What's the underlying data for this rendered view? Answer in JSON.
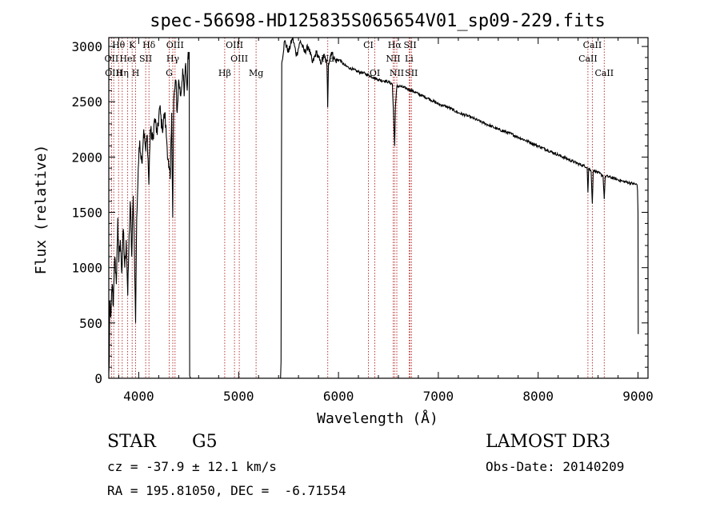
{
  "chart_data": {
    "type": "line",
    "title": "spec-56698-HD125835S065654V01_sp09-229.fits",
    "xlabel": "Wavelength (Å)",
    "ylabel": "Flux (relative)",
    "xlim": [
      3700,
      9100
    ],
    "ylim": [
      0,
      3080
    ],
    "xticks": [
      4000,
      5000,
      6000,
      7000,
      8000,
      9000
    ],
    "yticks": [
      0,
      500,
      1000,
      1500,
      2000,
      2500,
      3000
    ],
    "xtick_labels": [
      "4000",
      "5000",
      "6000",
      "7000",
      "8000",
      "9000"
    ],
    "ytick_labels": [
      "0",
      "500",
      "1000",
      "1500",
      "2000",
      "2500",
      "3000"
    ],
    "series": [
      {
        "name": "flux",
        "anchors": [
          [
            3700,
            50
          ],
          [
            3705,
            150
          ],
          [
            3710,
            700
          ],
          [
            3720,
            550
          ],
          [
            3735,
            850
          ],
          [
            3745,
            650
          ],
          [
            3760,
            1100
          ],
          [
            3775,
            850
          ],
          [
            3790,
            1450
          ],
          [
            3800,
            1050
          ],
          [
            3815,
            1250
          ],
          [
            3830,
            950
          ],
          [
            3845,
            1350
          ],
          [
            3860,
            1000
          ],
          [
            3875,
            1250
          ],
          [
            3890,
            750
          ],
          [
            3900,
            1150
          ],
          [
            3915,
            1600
          ],
          [
            3930,
            1100
          ],
          [
            3945,
            1650
          ],
          [
            3955,
            1250
          ],
          [
            3968,
            500
          ],
          [
            3980,
            1450
          ],
          [
            3995,
            1900
          ],
          [
            4010,
            2150
          ],
          [
            4030,
            1950
          ],
          [
            4050,
            2250
          ],
          [
            4070,
            2050
          ],
          [
            4085,
            2200
          ],
          [
            4101,
            1750
          ],
          [
            4115,
            2250
          ],
          [
            4140,
            2150
          ],
          [
            4160,
            2350
          ],
          [
            4185,
            2200
          ],
          [
            4210,
            2450
          ],
          [
            4235,
            2250
          ],
          [
            4260,
            2400
          ],
          [
            4280,
            2150
          ],
          [
            4300,
            1900
          ],
          [
            4315,
            1800
          ],
          [
            4330,
            2400
          ],
          [
            4340,
            1450
          ],
          [
            4350,
            2500
          ],
          [
            4370,
            2700
          ],
          [
            4385,
            2400
          ],
          [
            4400,
            2700
          ],
          [
            4420,
            2550
          ],
          [
            4440,
            2800
          ],
          [
            4455,
            2550
          ],
          [
            4470,
            2850
          ],
          [
            4485,
            2600
          ],
          [
            4495,
            2950
          ],
          [
            4505,
            2950
          ],
          [
            4510,
            20
          ],
          [
            4520,
            0
          ],
          [
            5420,
            0
          ],
          [
            5425,
            150
          ],
          [
            5432,
            2850
          ],
          [
            5460,
            3050
          ],
          [
            5500,
            2950
          ],
          [
            5540,
            3080
          ],
          [
            5580,
            2920
          ],
          [
            5620,
            3050
          ],
          [
            5660,
            2950
          ],
          [
            5700,
            3000
          ],
          [
            5740,
            2850
          ],
          [
            5780,
            2950
          ],
          [
            5820,
            2850
          ],
          [
            5860,
            2920
          ],
          [
            5885,
            2820
          ],
          [
            5892,
            2450
          ],
          [
            5900,
            2850
          ],
          [
            5930,
            2950
          ],
          [
            5970,
            2870
          ],
          [
            6010,
            2880
          ],
          [
            6060,
            2830
          ],
          [
            6100,
            2810
          ],
          [
            6150,
            2790
          ],
          [
            6200,
            2770
          ],
          [
            6250,
            2760
          ],
          [
            6300,
            2740
          ],
          [
            6350,
            2720
          ],
          [
            6400,
            2700
          ],
          [
            6450,
            2690
          ],
          [
            6500,
            2680
          ],
          [
            6540,
            2660
          ],
          [
            6555,
            2300
          ],
          [
            6563,
            2100
          ],
          [
            6570,
            2450
          ],
          [
            6585,
            2640
          ],
          [
            6620,
            2640
          ],
          [
            6680,
            2620
          ],
          [
            6740,
            2600
          ],
          [
            6800,
            2570
          ],
          [
            6900,
            2530
          ],
          [
            7000,
            2480
          ],
          [
            7100,
            2450
          ],
          [
            7200,
            2400
          ],
          [
            7300,
            2370
          ],
          [
            7400,
            2330
          ],
          [
            7500,
            2290
          ],
          [
            7600,
            2250
          ],
          [
            7700,
            2220
          ],
          [
            7800,
            2180
          ],
          [
            7900,
            2140
          ],
          [
            8000,
            2100
          ],
          [
            8100,
            2060
          ],
          [
            8200,
            2020
          ],
          [
            8300,
            1980
          ],
          [
            8400,
            1940
          ],
          [
            8490,
            1910
          ],
          [
            8498,
            1680
          ],
          [
            8506,
            1900
          ],
          [
            8530,
            1870
          ],
          [
            8542,
            1580
          ],
          [
            8552,
            1880
          ],
          [
            8600,
            1860
          ],
          [
            8650,
            1830
          ],
          [
            8662,
            1620
          ],
          [
            8672,
            1830
          ],
          [
            8750,
            1810
          ],
          [
            8850,
            1780
          ],
          [
            8950,
            1760
          ],
          [
            8990,
            1750
          ],
          [
            8995,
            1700
          ],
          [
            9000,
            1500
          ],
          [
            9002,
            400
          ]
        ]
      }
    ],
    "line_markers": [
      {
        "label": "Hθ",
        "wave": 3798
      },
      {
        "label": "K",
        "wave": 3934
      },
      {
        "label": "Hδ",
        "wave": 4102
      },
      {
        "label": "OIII",
        "wave": 4363
      },
      {
        "label": "OIII",
        "wave": 4959
      },
      {
        "label": "CI",
        "wave": 6300
      },
      {
        "label": "Hα",
        "wave": 6563
      },
      {
        "label": "SII",
        "wave": 6717
      },
      {
        "label": "CaII",
        "wave": 8542
      },
      {
        "label": "OII",
        "wave": 3727
      },
      {
        "label": "HeI",
        "wave": 3889
      },
      {
        "label": "SII",
        "wave": 4069
      },
      {
        "label": "Hγ",
        "wave": 4341
      },
      {
        "label": "OIII",
        "wave": 5007
      },
      {
        "label": "Na",
        "wave": 5893
      },
      {
        "label": "NII",
        "wave": 6548
      },
      {
        "label": "Li",
        "wave": 6708
      },
      {
        "label": "CaII",
        "wave": 8498
      },
      {
        "label": "OIII",
        "wave": 3750
      },
      {
        "label": "Hη",
        "wave": 3835
      },
      {
        "label": "H",
        "wave": 3968
      },
      {
        "label": "G",
        "wave": 4305
      },
      {
        "label": "Hβ",
        "wave": 4861
      },
      {
        "label": "Mg",
        "wave": 5175
      },
      {
        "label": "OI",
        "wave": 6364
      },
      {
        "label": "NII",
        "wave": 6584
      },
      {
        "label": "SII",
        "wave": 6731
      },
      {
        "label": "CaII",
        "wave": 8662
      }
    ]
  },
  "info": {
    "class_label": "STAR",
    "subclass": "G5",
    "survey": "LAMOST DR3",
    "cz": "cz = -37.9 ± 12.1 km/s",
    "obs_date": "Obs-Date: 20140209",
    "coords": "RA = 195.81050, DEC =  -6.71554"
  },
  "colors": {
    "line": "#000000",
    "marker": "#b22222",
    "axis": "#000000"
  }
}
